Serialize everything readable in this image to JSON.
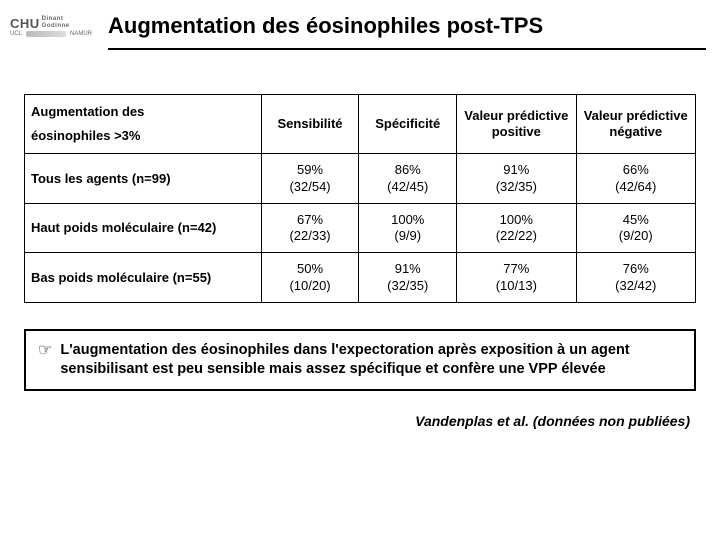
{
  "logo": {
    "brand": "CHU",
    "brand_sub": "Dinant\nGodinne",
    "sub1": "UCL",
    "sub2": "NAMUR"
  },
  "title": "Augmentation des éosinophiles post-TPS",
  "table": {
    "header_rowlabel_line1": "Augmentation des",
    "header_rowlabel_line2": "éosinophiles >3%",
    "columns": [
      "Sensibilité",
      "Spécificité",
      "Valeur prédictive positive",
      "Valeur prédictive négative"
    ],
    "rows": [
      {
        "label": "Tous les agents (n=99)",
        "cells": [
          {
            "pct": "59%",
            "frac": "(32/54)"
          },
          {
            "pct": "86%",
            "frac": "(42/45)"
          },
          {
            "pct": "91%",
            "frac": "(32/35)"
          },
          {
            "pct": "66%",
            "frac": "(42/64)"
          }
        ]
      },
      {
        "label": "Haut poids moléculaire (n=42)",
        "cells": [
          {
            "pct": "67%",
            "frac": "(22/33)"
          },
          {
            "pct": "100%",
            "frac": "(9/9)"
          },
          {
            "pct": "100%",
            "frac": "(22/22)"
          },
          {
            "pct": "45%",
            "frac": "(9/20)"
          }
        ]
      },
      {
        "label": "Bas poids moléculaire (n=55)",
        "cells": [
          {
            "pct": "50%",
            "frac": "(10/20)"
          },
          {
            "pct": "91%",
            "frac": "(32/35)"
          },
          {
            "pct": "77%",
            "frac": "(10/13)"
          },
          {
            "pct": "76%",
            "frac": "(32/42)"
          }
        ]
      }
    ]
  },
  "note": "L'augmentation des éosinophiles dans l'expectoration  après exposition à un agent sensibilisant est peu sensible mais assez spécifique et confère une VPP élevée",
  "citation": "Vandenplas et al. (données non publiées)"
}
